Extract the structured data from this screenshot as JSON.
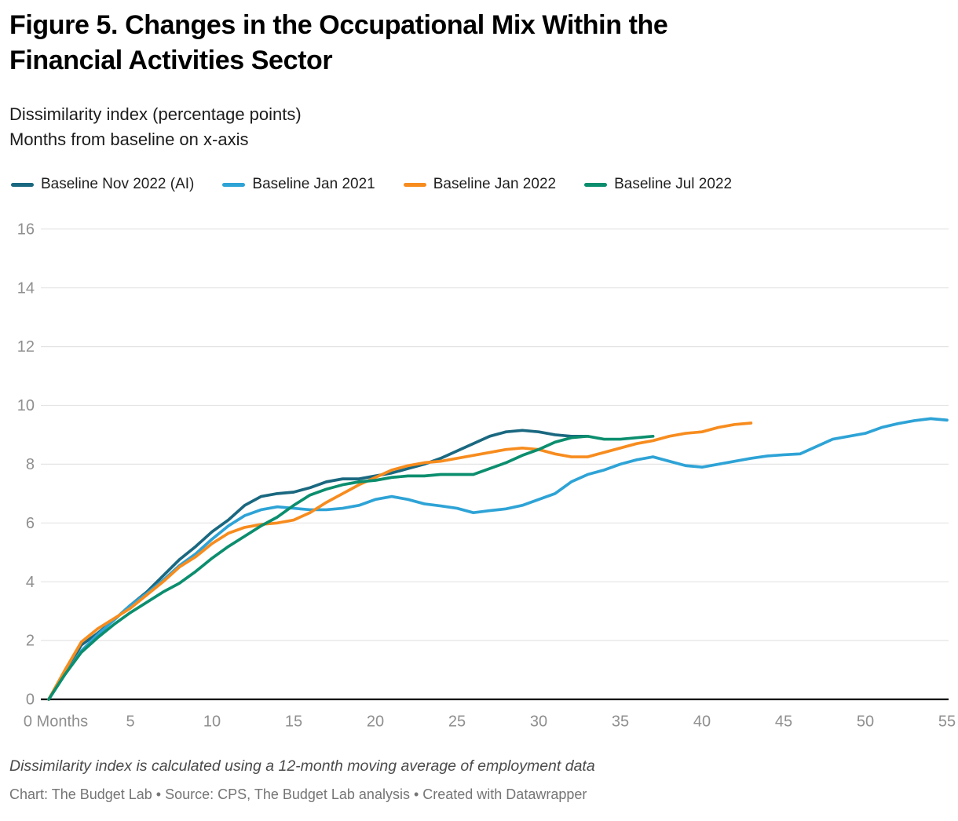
{
  "header": {
    "title_line1": "Figure 5. Changes in the Occupational Mix Within the",
    "title_line2": "Financial Activities Sector",
    "subtitle_line1": "Dissimilarity index (percentage points)",
    "subtitle_line2": "Months from baseline on x-axis"
  },
  "footer": {
    "note": "Dissimilarity index is calculated using a 12-month moving average of employment data",
    "credit": "Chart: The Budget Lab • Source: CPS, The Budget Lab analysis • Created with Datawrapper"
  },
  "colors": {
    "grid": "#e4e4e4",
    "baseline_axis": "#0d0d0d",
    "tick_label": "#8f8f8f"
  },
  "chart_data": {
    "type": "line",
    "title": "Figure 5. Changes in the Occupational Mix Within the Financial Activities Sector",
    "xlabel": "Months from baseline",
    "ylabel": "Dissimilarity index (percentage points)",
    "x_ticks": [
      0,
      5,
      10,
      15,
      20,
      25,
      30,
      35,
      40,
      45,
      50,
      55
    ],
    "x_zero_label": "0 Months",
    "y_ticks": [
      0,
      2,
      4,
      6,
      8,
      10,
      12,
      14,
      16
    ],
    "xlim": [
      0,
      55
    ],
    "ylim": [
      0,
      16
    ],
    "grid": true,
    "legend_position": "top",
    "x_unit": "months from baseline (1 point per month, starting at month 0)",
    "series": [
      {
        "name": "Baseline Nov 2022 (AI)",
        "color": "#1a6880",
        "values": [
          0,
          0.9,
          1.85,
          2.25,
          2.7,
          3.2,
          3.65,
          4.2,
          4.75,
          5.2,
          5.7,
          6.1,
          6.6,
          6.9,
          7.0,
          7.05,
          7.2,
          7.4,
          7.5,
          7.5,
          7.6,
          7.7,
          7.85,
          8.0,
          8.2,
          8.45,
          8.7,
          8.95,
          9.1,
          9.15,
          9.1,
          9.0,
          8.95,
          8.95
        ]
      },
      {
        "name": "Baseline Jan 2021",
        "color": "#2ea3d6",
        "values": [
          0,
          0.85,
          1.65,
          2.2,
          2.7,
          3.2,
          3.6,
          4.05,
          4.55,
          4.95,
          5.45,
          5.9,
          6.25,
          6.45,
          6.55,
          6.5,
          6.45,
          6.45,
          6.5,
          6.6,
          6.8,
          6.9,
          6.8,
          6.65,
          6.58,
          6.5,
          6.35,
          6.42,
          6.48,
          6.6,
          6.8,
          7.0,
          7.4,
          7.65,
          7.8,
          8.0,
          8.15,
          8.25,
          8.1,
          7.95,
          7.9,
          8.0,
          8.1,
          8.2,
          8.28,
          8.32,
          8.35,
          8.6,
          8.85,
          8.95,
          9.05,
          9.25,
          9.38,
          9.48,
          9.55,
          9.5
        ]
      },
      {
        "name": "Baseline Jan 2022",
        "color": "#f78c1e",
        "values": [
          0,
          1.0,
          1.95,
          2.4,
          2.75,
          3.1,
          3.55,
          4.0,
          4.5,
          4.85,
          5.3,
          5.65,
          5.85,
          5.95,
          6.0,
          6.1,
          6.35,
          6.7,
          7.0,
          7.3,
          7.55,
          7.8,
          7.95,
          8.05,
          8.1,
          8.2,
          8.3,
          8.4,
          8.5,
          8.55,
          8.5,
          8.35,
          8.25,
          8.25,
          8.4,
          8.55,
          8.7,
          8.8,
          8.95,
          9.05,
          9.1,
          9.25,
          9.35,
          9.4
        ]
      },
      {
        "name": "Baseline Jul 2022",
        "color": "#0b8e6e",
        "values": [
          0,
          0.85,
          1.6,
          2.1,
          2.55,
          2.95,
          3.3,
          3.65,
          3.95,
          4.35,
          4.8,
          5.2,
          5.55,
          5.9,
          6.2,
          6.6,
          6.95,
          7.15,
          7.3,
          7.4,
          7.45,
          7.55,
          7.6,
          7.6,
          7.65,
          7.65,
          7.65,
          7.85,
          8.05,
          8.3,
          8.5,
          8.75,
          8.9,
          8.95,
          8.85,
          8.85,
          8.9,
          8.95
        ]
      }
    ]
  }
}
